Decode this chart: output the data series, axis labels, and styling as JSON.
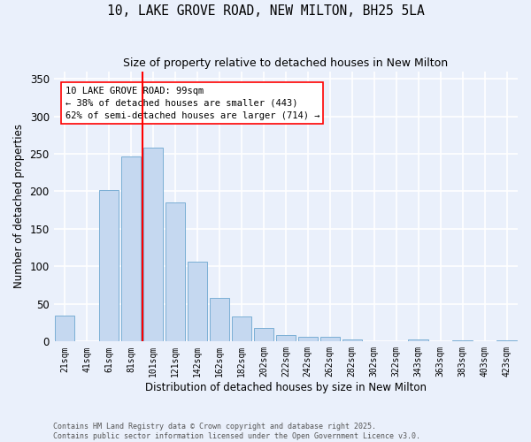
{
  "title_line1": "10, LAKE GROVE ROAD, NEW MILTON, BH25 5LA",
  "title_line2": "Size of property relative to detached houses in New Milton",
  "xlabel": "Distribution of detached houses by size in New Milton",
  "ylabel": "Number of detached properties",
  "categories": [
    "21sqm",
    "41sqm",
    "61sqm",
    "81sqm",
    "101sqm",
    "121sqm",
    "142sqm",
    "162sqm",
    "182sqm",
    "202sqm",
    "222sqm",
    "242sqm",
    "262sqm",
    "282sqm",
    "302sqm",
    "322sqm",
    "343sqm",
    "363sqm",
    "383sqm",
    "403sqm",
    "423sqm"
  ],
  "values": [
    35,
    0,
    202,
    247,
    258,
    185,
    106,
    58,
    33,
    18,
    9,
    6,
    6,
    3,
    0,
    0,
    3,
    0,
    1,
    0,
    2
  ],
  "bar_color": "#c5d8f0",
  "bar_edge_color": "#7bafd4",
  "vline_bin_index": 4,
  "vline_color": "red",
  "annotation_box_text": "10 LAKE GROVE ROAD: 99sqm\n← 38% of detached houses are smaller (443)\n62% of semi-detached houses are larger (714) →",
  "background_color": "#eaf0fb",
  "grid_color": "#ffffff",
  "ylim": [
    0,
    360
  ],
  "yticks": [
    0,
    50,
    100,
    150,
    200,
    250,
    300,
    350
  ],
  "footer_line1": "Contains HM Land Registry data © Crown copyright and database right 2025.",
  "footer_line2": "Contains public sector information licensed under the Open Government Licence v3.0."
}
